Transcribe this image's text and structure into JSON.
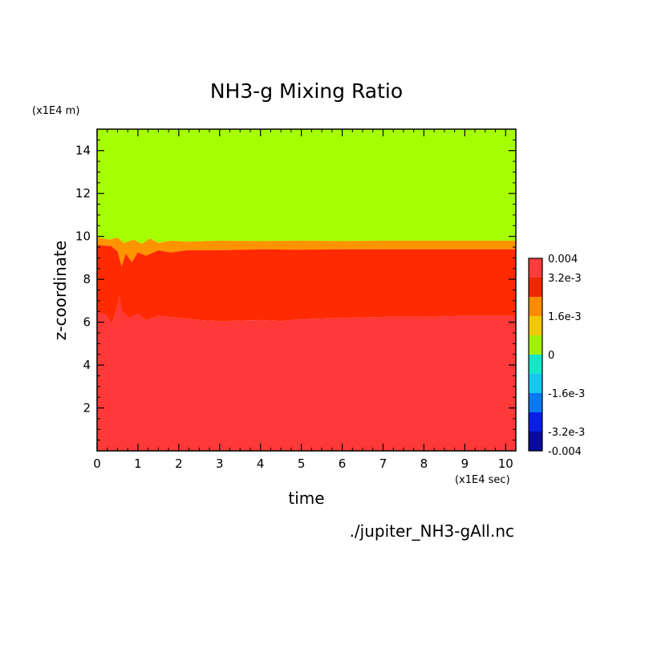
{
  "chart_data": {
    "type": "heatmap",
    "title": "NH3-g Mixing Ratio",
    "xlabel": "time",
    "ylabel": "z-coordinate",
    "x_unit": "(x1E4 sec)",
    "y_unit": "(x1E4 m)",
    "source_file": "./jupiter_NH3-gAll.nc",
    "xlim": [
      0,
      10.25
    ],
    "ylim": [
      0,
      15
    ],
    "x_ticks": [
      0,
      1,
      2,
      3,
      4,
      5,
      6,
      7,
      8,
      9,
      10
    ],
    "y_ticks": [
      2,
      4,
      6,
      8,
      10,
      12,
      14
    ],
    "grid": false,
    "colorbar": {
      "min": -0.004,
      "max": 0.004,
      "levels": [
        -0.004,
        -0.0032,
        -0.0024,
        -0.0016,
        -0.0008,
        0,
        0.0008,
        0.0016,
        0.0024,
        0.0032,
        0.004
      ],
      "colors": [
        "#0a0a9c",
        "#0a1ee6",
        "#0a78f0",
        "#14c8f0",
        "#14e6c8",
        "#a0f000",
        "#f0c800",
        "#ff8c00",
        "#f02800",
        "#ff3c3c"
      ],
      "tick_labels": [
        "0.004",
        "3.2e-3",
        "1.6e-3",
        "0",
        "-1.6e-3",
        "-3.2e-3",
        "-0.004"
      ],
      "tick_values": [
        0.004,
        0.0032,
        0.0016,
        0,
        -0.0016,
        -0.0032,
        -0.004
      ]
    },
    "layers": [
      {
        "name": "upper",
        "color": "#a6ff00",
        "value_range": [
          0,
          0.0008
        ],
        "z_range": [
          9.8,
          15
        ]
      },
      {
        "name": "transition",
        "color": "#ff9400",
        "value_range": [
          0.0016,
          0.0024
        ],
        "z_range": [
          9.4,
          9.8
        ]
      },
      {
        "name": "middle",
        "color": "#ff2a00",
        "value_range": [
          0.0024,
          0.0032
        ],
        "z_range": [
          6.2,
          9.4
        ]
      },
      {
        "name": "lower",
        "color": "#ff3838",
        "value_range": [
          0.0032,
          0.004
        ],
        "z_range": [
          0,
          6.2
        ]
      }
    ],
    "boundaries": {
      "upper_transition": [
        [
          0,
          9.95
        ],
        [
          0.3,
          9.85
        ],
        [
          0.5,
          9.95
        ],
        [
          0.65,
          9.7
        ],
        [
          0.9,
          9.85
        ],
        [
          1.1,
          9.65
        ],
        [
          1.3,
          9.9
        ],
        [
          1.5,
          9.7
        ],
        [
          1.8,
          9.8
        ],
        [
          2.2,
          9.75
        ],
        [
          3,
          9.8
        ],
        [
          4,
          9.78
        ],
        [
          5,
          9.8
        ],
        [
          6,
          9.78
        ],
        [
          7,
          9.8
        ],
        [
          8,
          9.8
        ],
        [
          9,
          9.8
        ],
        [
          10.25,
          9.8
        ]
      ],
      "transition_middle": [
        [
          0,
          9.6
        ],
        [
          0.35,
          9.55
        ],
        [
          0.5,
          9.3
        ],
        [
          0.6,
          8.6
        ],
        [
          0.7,
          9.2
        ],
        [
          0.85,
          8.8
        ],
        [
          1.0,
          9.25
        ],
        [
          1.2,
          9.1
        ],
        [
          1.5,
          9.35
        ],
        [
          1.8,
          9.25
        ],
        [
          2.2,
          9.35
        ],
        [
          3,
          9.35
        ],
        [
          4,
          9.4
        ],
        [
          5,
          9.38
        ],
        [
          6,
          9.4
        ],
        [
          7,
          9.4
        ],
        [
          8,
          9.4
        ],
        [
          9,
          9.4
        ],
        [
          10.25,
          9.4
        ]
      ],
      "middle_lower": [
        [
          0,
          6.5
        ],
        [
          0.25,
          6.3
        ],
        [
          0.35,
          5.9
        ],
        [
          0.45,
          6.4
        ],
        [
          0.55,
          7.2
        ],
        [
          0.6,
          6.5
        ],
        [
          0.8,
          6.2
        ],
        [
          1.0,
          6.4
        ],
        [
          1.2,
          6.1
        ],
        [
          1.5,
          6.3
        ],
        [
          2.0,
          6.2
        ],
        [
          2.5,
          6.1
        ],
        [
          3,
          6.05
        ],
        [
          4,
          6.1
        ],
        [
          4.5,
          6.05
        ],
        [
          5,
          6.15
        ],
        [
          6,
          6.2
        ],
        [
          7,
          6.25
        ],
        [
          8,
          6.25
        ],
        [
          9,
          6.3
        ],
        [
          10.25,
          6.3
        ]
      ]
    }
  }
}
